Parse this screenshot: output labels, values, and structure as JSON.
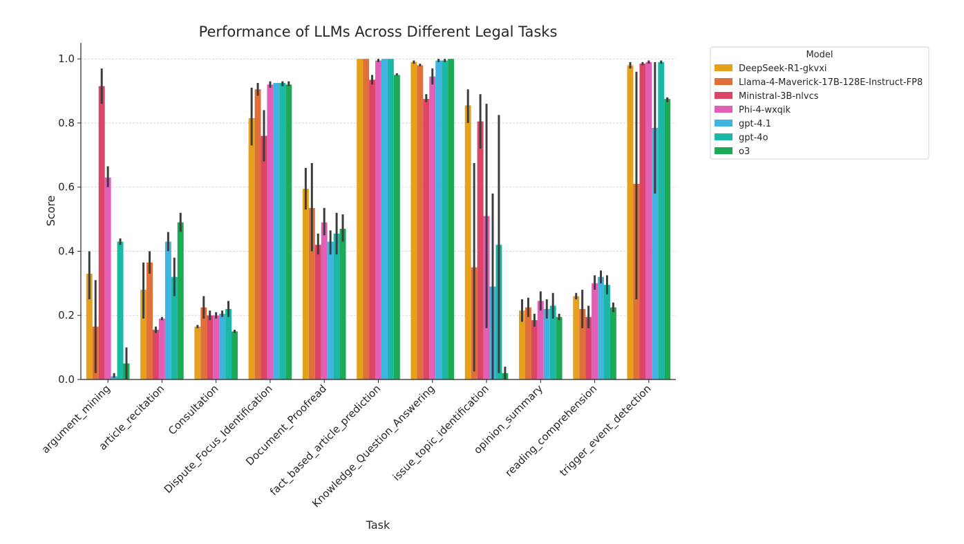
{
  "chart_data": {
    "type": "bar",
    "title": "Performance of LLMs Across Different Legal Tasks",
    "x_label": "Task",
    "y_label": "Score",
    "legend_title": "Model",
    "legend_position": "upper right outside",
    "grid": true,
    "categories": [
      "argument_mining",
      "article_recitation",
      "Consultation",
      "Dispute_Focus_Identification",
      "Document_Proofread",
      "fact_based_article_prediction",
      "Knowledge_Question_Answering",
      "issue_topic_identification",
      "opinion_summary",
      "reading_comprehension",
      "trigger_event_detection"
    ],
    "ylim": [
      0,
      1.05
    ],
    "yticks": [
      {
        "value": 0,
        "label": "0.0"
      },
      {
        "value": 0.2,
        "label": "0.2"
      },
      {
        "value": 0.4,
        "label": "0.4"
      },
      {
        "value": 0.6,
        "label": "0.6"
      },
      {
        "value": 0.8,
        "label": "0.8"
      },
      {
        "value": 1,
        "label": "1.0"
      }
    ],
    "series": [
      {
        "name": "DeepSeek-R1-gkvxi",
        "color": "#e5a11c",
        "values": [
          0.33,
          0.28,
          0.165,
          0.815,
          0.595,
          1.0,
          0.99,
          0.855,
          0.215,
          0.26,
          0.98
        ],
        "ci_low": [
          0.25,
          0.19,
          0.16,
          0.73,
          0.53,
          1.0,
          0.985,
          0.8,
          0.18,
          0.25,
          0.97
        ],
        "ci_high": [
          0.4,
          0.365,
          0.17,
          0.91,
          0.66,
          1.0,
          0.995,
          0.905,
          0.25,
          0.27,
          0.99
        ]
      },
      {
        "name": "Llama-4-Maverick-17B-128E-Instruct-FP8",
        "color": "#e0703a",
        "values": [
          0.165,
          0.365,
          0.225,
          0.905,
          0.535,
          1.0,
          0.98,
          0.35,
          0.225,
          0.22,
          0.61
        ],
        "ci_low": [
          0.02,
          0.33,
          0.19,
          0.885,
          0.4,
          1.0,
          0.977,
          0.025,
          0.195,
          0.16,
          0.25
        ],
        "ci_high": [
          0.31,
          0.4,
          0.26,
          0.925,
          0.675,
          1.0,
          0.985,
          0.675,
          0.255,
          0.28,
          0.96
        ]
      },
      {
        "name": "Ministral-3B-nlvcs",
        "color": "#dc4565",
        "values": [
          0.915,
          0.155,
          0.2,
          0.76,
          0.42,
          0.935,
          0.875,
          0.805,
          0.185,
          0.195,
          0.985
        ],
        "ci_low": [
          0.86,
          0.145,
          0.185,
          0.68,
          0.39,
          0.92,
          0.865,
          0.72,
          0.165,
          0.16,
          0.98
        ],
        "ci_high": [
          0.97,
          0.165,
          0.215,
          0.84,
          0.455,
          0.95,
          0.89,
          0.89,
          0.205,
          0.23,
          0.99
        ]
      },
      {
        "name": "Phi-4-wxqik",
        "color": "#e25fb6",
        "values": [
          0.63,
          0.19,
          0.2,
          0.92,
          0.49,
          0.995,
          0.945,
          0.51,
          0.245,
          0.3,
          0.99
        ],
        "ci_low": [
          0.6,
          0.185,
          0.19,
          0.91,
          0.45,
          0.99,
          0.92,
          0.16,
          0.215,
          0.28,
          0.985
        ],
        "ci_high": [
          0.665,
          0.195,
          0.21,
          0.93,
          0.535,
          1.0,
          0.97,
          0.86,
          0.275,
          0.325,
          0.995
        ]
      },
      {
        "name": "gpt-4.1",
        "color": "#3fb4e0",
        "values": [
          0.01,
          0.43,
          0.205,
          0.925,
          0.43,
          1.0,
          0.995,
          0.29,
          0.22,
          0.32,
          0.785
        ],
        "ci_low": [
          0.005,
          0.4,
          0.195,
          0.925,
          0.39,
          1.0,
          0.99,
          0.0,
          0.19,
          0.3,
          0.58
        ],
        "ci_high": [
          0.02,
          0.46,
          0.215,
          0.925,
          0.465,
          1.0,
          1.0,
          0.58,
          0.25,
          0.34,
          0.99
        ]
      },
      {
        "name": "gpt-4o",
        "color": "#1cb8a6",
        "values": [
          0.43,
          0.32,
          0.22,
          0.925,
          0.455,
          1.0,
          0.995,
          0.42,
          0.23,
          0.295,
          0.99
        ],
        "ci_low": [
          0.42,
          0.26,
          0.195,
          0.915,
          0.39,
          1.0,
          0.99,
          0.02,
          0.19,
          0.265,
          0.985
        ],
        "ci_high": [
          0.44,
          0.38,
          0.245,
          0.93,
          0.52,
          1.0,
          1.0,
          0.825,
          0.27,
          0.325,
          0.995
        ]
      },
      {
        "name": "o3",
        "color": "#1daa56",
        "values": [
          0.05,
          0.49,
          0.15,
          0.92,
          0.47,
          0.95,
          1.0,
          0.02,
          0.195,
          0.225,
          0.875
        ],
        "ci_low": [
          0.0,
          0.46,
          0.145,
          0.915,
          0.43,
          0.948,
          1.0,
          0.0,
          0.185,
          0.21,
          0.865
        ],
        "ci_high": [
          0.1,
          0.52,
          0.155,
          0.93,
          0.515,
          0.955,
          1.0,
          0.04,
          0.205,
          0.24,
          0.88
        ]
      }
    ]
  }
}
